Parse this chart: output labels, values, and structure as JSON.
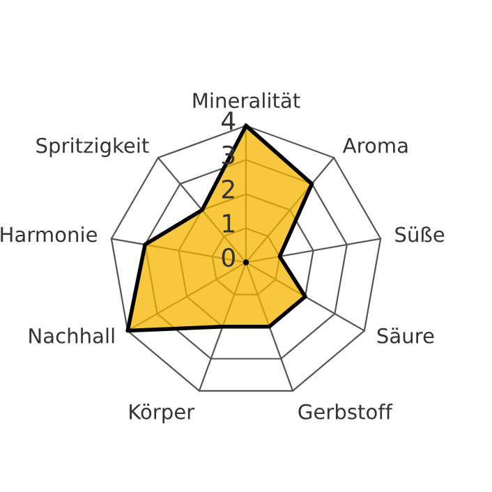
{
  "chart_data": {
    "type": "radar",
    "categories": [
      "Mineralität",
      "Aroma",
      "Süße",
      "Säure",
      "Gerbstoff",
      "Körper",
      "Nachhall",
      "Harmonie",
      "Spritzigkeit"
    ],
    "series": [
      {
        "color": "#f5b400",
        "values": [
          4,
          3,
          1,
          2,
          2,
          2,
          4,
          3,
          2
        ]
      }
    ],
    "ylim": [
      0,
      4
    ],
    "yticks": [
      0,
      1,
      2,
      3,
      4
    ],
    "grid": true,
    "line_style": "solid"
  }
}
